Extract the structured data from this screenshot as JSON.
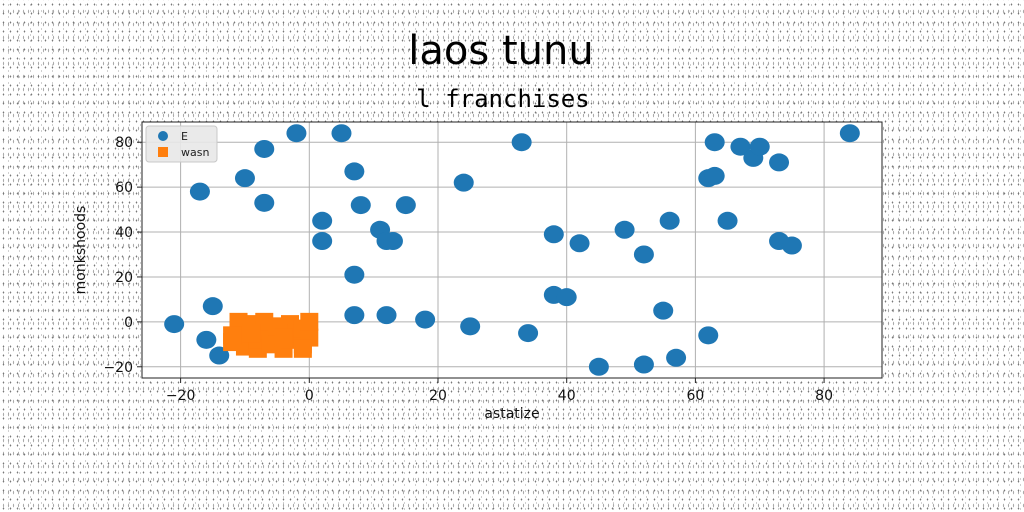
{
  "chart_data": {
    "type": "scatter",
    "title": "laos tunu",
    "subtitle": "l franchises",
    "xlabel": "astatize",
    "ylabel": "monkshoods",
    "xlim": [
      -26,
      89
    ],
    "ylim": [
      -25,
      89
    ],
    "x_ticks": [
      -20,
      0,
      20,
      40,
      60,
      80
    ],
    "y_ticks": [
      -20,
      0,
      20,
      40,
      60,
      80
    ],
    "x_tick_labels": [
      "−20",
      "0",
      "20",
      "40",
      "60",
      "80"
    ],
    "y_tick_labels": [
      "−20",
      "0",
      "20",
      "40",
      "60",
      "80"
    ],
    "grid": true,
    "legend_position": "top-left",
    "series": [
      {
        "name": "E",
        "color": "#1f77b4",
        "marker": "circle",
        "points": [
          [
            -21,
            -1
          ],
          [
            -17,
            58
          ],
          [
            -15,
            7
          ],
          [
            -16,
            -8
          ],
          [
            -14,
            -15
          ],
          [
            -10,
            64
          ],
          [
            -7,
            77
          ],
          [
            -7,
            53
          ],
          [
            -2,
            84
          ],
          [
            2,
            45
          ],
          [
            2,
            36
          ],
          [
            5,
            84
          ],
          [
            7,
            67
          ],
          [
            8,
            52
          ],
          [
            7,
            21
          ],
          [
            7,
            3
          ],
          [
            11,
            41
          ],
          [
            12,
            36
          ],
          [
            13,
            36
          ],
          [
            12,
            3
          ],
          [
            15,
            52
          ],
          [
            18,
            1
          ],
          [
            24,
            62
          ],
          [
            25,
            -2
          ],
          [
            33,
            80
          ],
          [
            34,
            -5
          ],
          [
            38,
            39
          ],
          [
            38,
            12
          ],
          [
            40,
            11
          ],
          [
            42,
            35
          ],
          [
            45,
            -20
          ],
          [
            49,
            41
          ],
          [
            52,
            30
          ],
          [
            52,
            -19
          ],
          [
            55,
            5
          ],
          [
            56,
            45
          ],
          [
            57,
            -16
          ],
          [
            62,
            64
          ],
          [
            63,
            65
          ],
          [
            62,
            -6
          ],
          [
            63,
            80
          ],
          [
            65,
            45
          ],
          [
            67,
            78
          ],
          [
            69,
            73
          ],
          [
            70,
            78
          ],
          [
            73,
            71
          ],
          [
            73,
            36
          ],
          [
            75,
            34
          ],
          [
            84,
            84
          ]
        ]
      },
      {
        "name": "wasn",
        "color": "#ff7f0e",
        "marker": "square",
        "points": [
          [
            -12,
            -9
          ],
          [
            -11,
            -4
          ],
          [
            -11,
            0
          ],
          [
            -10,
            -11
          ],
          [
            -10,
            -6
          ],
          [
            -9,
            -1
          ],
          [
            -8,
            -12
          ],
          [
            -8,
            -8
          ],
          [
            -7,
            -4
          ],
          [
            -7,
            0
          ],
          [
            -6,
            -10
          ],
          [
            -5,
            -6
          ],
          [
            -5,
            -2
          ],
          [
            -4,
            -12
          ],
          [
            -3,
            -8
          ],
          [
            -3,
            -1
          ],
          [
            -2,
            -5
          ],
          [
            -1,
            -10
          ],
          [
            -1,
            -3
          ],
          [
            0,
            -7
          ],
          [
            0,
            0
          ],
          [
            -1,
            -12
          ],
          [
            -9,
            -5
          ],
          [
            -4,
            -7
          ],
          [
            -12,
            -6
          ]
        ]
      }
    ]
  }
}
